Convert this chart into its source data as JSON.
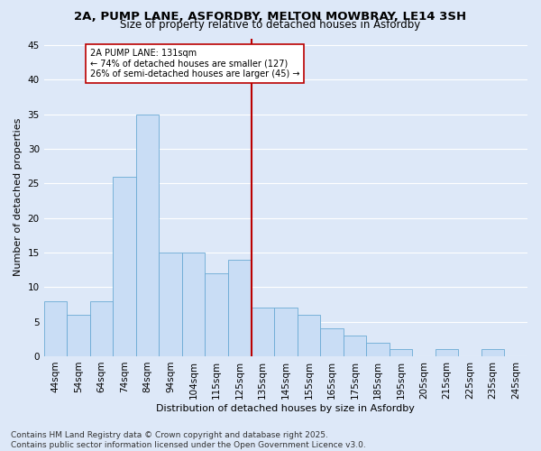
{
  "title": "2A, PUMP LANE, ASFORDBY, MELTON MOWBRAY, LE14 3SH",
  "subtitle": "Size of property relative to detached houses in Asfordby",
  "xlabel": "Distribution of detached houses by size in Asfordby",
  "ylabel": "Number of detached properties",
  "categories": [
    "44sqm",
    "54sqm",
    "64sqm",
    "74sqm",
    "84sqm",
    "94sqm",
    "104sqm",
    "115sqm",
    "125sqm",
    "135sqm",
    "145sqm",
    "155sqm",
    "165sqm",
    "175sqm",
    "185sqm",
    "195sqm",
    "205sqm",
    "215sqm",
    "225sqm",
    "235sqm",
    "245sqm"
  ],
  "values": [
    8,
    6,
    8,
    26,
    35,
    15,
    15,
    12,
    14,
    7,
    7,
    6,
    4,
    3,
    2,
    1,
    0,
    1,
    0,
    1,
    0
  ],
  "bar_color": "#c9ddf5",
  "bar_edge_color": "#6aaad4",
  "background_color": "#dde8f8",
  "grid_color": "#ffffff",
  "vline_x_idx": 9,
  "vline_color": "#bb0000",
  "annotation_text": "2A PUMP LANE: 131sqm\n← 74% of detached houses are smaller (127)\n26% of semi-detached houses are larger (45) →",
  "annotation_box_facecolor": "#ffffff",
  "annotation_box_edgecolor": "#bb0000",
  "footer_text": "Contains HM Land Registry data © Crown copyright and database right 2025.\nContains public sector information licensed under the Open Government Licence v3.0.",
  "ylim": [
    0,
    46
  ],
  "yticks": [
    0,
    5,
    10,
    15,
    20,
    25,
    30,
    35,
    40,
    45
  ],
  "title_fontsize": 9.5,
  "subtitle_fontsize": 8.5,
  "axis_label_fontsize": 8,
  "tick_fontsize": 7.5,
  "annotation_fontsize": 7,
  "footer_fontsize": 6.5
}
